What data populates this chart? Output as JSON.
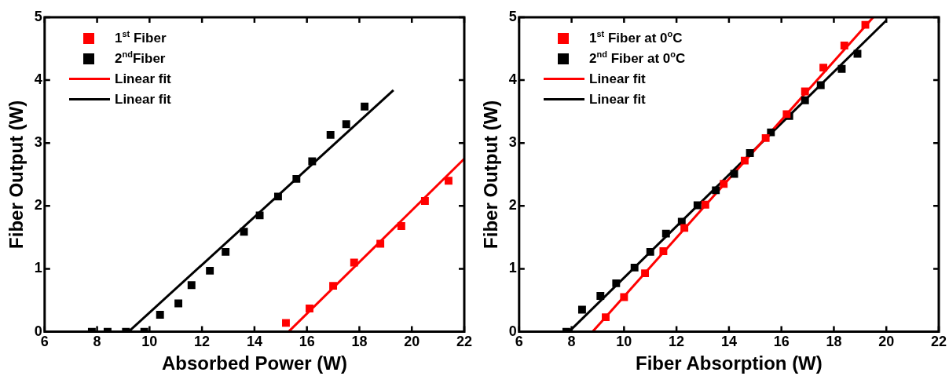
{
  "chart_data": [
    {
      "type": "scatter",
      "xlabel": "Absorbed Power (W)",
      "ylabel": "Fiber Output (W)",
      "xlim": [
        6,
        22
      ],
      "xticks": [
        6,
        8,
        10,
        12,
        14,
        16,
        18,
        20,
        22
      ],
      "ylim": [
        0,
        5
      ],
      "yticks": [
        0,
        1,
        2,
        3,
        4,
        5
      ],
      "grid": false,
      "legend": "top left",
      "marker": "square",
      "series": [
        {
          "name": "1$^{st}$ Fiber",
          "color": "#ff0000",
          "x": [
            15.2,
            16.1,
            17.0,
            17.8,
            18.8,
            19.6,
            20.5,
            21.4
          ],
          "values": [
            0.14,
            0.37,
            0.73,
            1.1,
            1.4,
            1.68,
            2.08,
            2.4
          ]
        },
        {
          "name": "2$^{nd}$Fiber",
          "color": "#000000",
          "x": [
            7.8,
            8.4,
            9.1,
            9.8,
            10.4,
            11.1,
            11.6,
            12.3,
            12.9,
            13.6,
            14.2,
            14.9,
            15.6,
            16.2,
            16.9,
            17.5,
            18.2
          ],
          "values": [
            0,
            0,
            0,
            0,
            0.27,
            0.45,
            0.74,
            0.97,
            1.27,
            1.59,
            1.85,
            2.15,
            2.43,
            2.71,
            3.13,
            3.3,
            3.58
          ]
        },
        {
          "name": "Linear fit",
          "type": "line",
          "marker": "none",
          "line_style": "solid",
          "color": "#ff0000",
          "x": [
            15.3,
            22
          ],
          "values": [
            0,
            2.75
          ]
        },
        {
          "name": "Linear fit",
          "type": "line",
          "marker": "none",
          "line_style": "solid",
          "color": "#000000",
          "x": [
            9.2,
            19.3
          ],
          "values": [
            0,
            3.84
          ]
        }
      ]
    },
    {
      "type": "scatter",
      "xlabel": "Fiber Absorption (W)",
      "ylabel": "Fiber Output (W)",
      "xlim": [
        6,
        22
      ],
      "xticks": [
        6,
        8,
        10,
        12,
        14,
        16,
        18,
        20,
        22
      ],
      "ylim": [
        0,
        5
      ],
      "yticks": [
        0,
        1,
        2,
        3,
        4,
        5
      ],
      "grid": false,
      "legend": "top left",
      "marker": "square",
      "series": [
        {
          "name": "1$^{st}$ Fiber at 0$^{o}$C",
          "color": "#ff0000",
          "x": [
            9.3,
            10.0,
            10.8,
            11.5,
            12.3,
            13.1,
            13.8,
            14.6,
            15.4,
            16.2,
            16.9,
            17.6,
            18.4,
            19.2
          ],
          "values": [
            0.23,
            0.55,
            0.93,
            1.28,
            1.65,
            2.02,
            2.35,
            2.72,
            3.08,
            3.46,
            3.82,
            4.2,
            4.55,
            4.88
          ]
        },
        {
          "name": "2$^{nd}$ Fiber at 0$^{o}$C",
          "color": "#000000",
          "x": [
            7.8,
            8.4,
            9.1,
            9.7,
            10.4,
            11.0,
            11.6,
            12.2,
            12.8,
            13.5,
            14.2,
            14.8,
            15.6,
            16.3,
            16.9,
            17.5,
            18.3,
            18.9
          ],
          "values": [
            0,
            0.35,
            0.57,
            0.77,
            1.02,
            1.27,
            1.56,
            1.75,
            2.01,
            2.25,
            2.51,
            2.84,
            3.17,
            3.43,
            3.68,
            3.92,
            4.18,
            4.42
          ]
        },
        {
          "name": "Linear fit",
          "type": "line",
          "marker": "none",
          "line_style": "solid",
          "color": "#ff0000",
          "x": [
            8.8,
            19.5
          ],
          "values": [
            0,
            5
          ]
        },
        {
          "name": "Linear fit",
          "type": "line",
          "marker": "none",
          "line_style": "solid",
          "color": "#000000",
          "x": [
            7.9,
            20
          ],
          "values": [
            0,
            4.95
          ]
        }
      ]
    }
  ]
}
